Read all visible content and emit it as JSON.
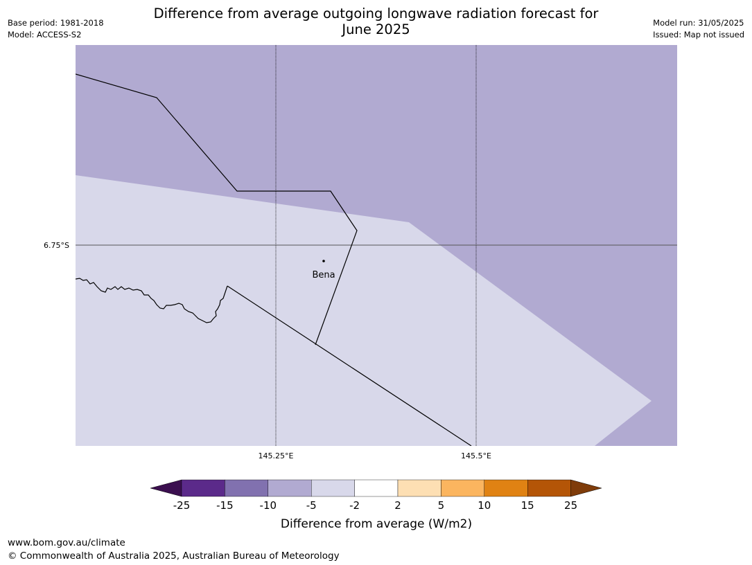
{
  "header": {
    "base_period": "Base period: 1981-2018",
    "model": "Model: ACCESS-S2",
    "title_line1": "Difference from average outgoing longwave radiation forecast for",
    "title_line2": "June 2025",
    "model_run": "Model run: 31/05/2025",
    "issued": "Issued: Map not issued"
  },
  "map": {
    "latitude_labels": [
      "6.75°S"
    ],
    "longitude_labels": [
      "145.25°E",
      "145.5°E"
    ],
    "place": "Bena",
    "fill_colors": {
      "minus_10_to_minus_5": "#b1aad1",
      "minus_5_to_minus_2": "#d8d8ea"
    },
    "border_color": "#000000"
  },
  "legend": {
    "tick_labels": [
      "-25",
      "-15",
      "-10",
      "-5",
      "-2",
      "2",
      "5",
      "10",
      "15",
      "25"
    ],
    "colors": [
      "#3b0f4f",
      "#5b2a8a",
      "#8171af",
      "#b1aad1",
      "#d8d8ea",
      "#ffffff",
      "#fddfb3",
      "#fbb55f",
      "#e08213",
      "#b45507",
      "#7f3c0a"
    ],
    "label": "Difference from average (W/m2)"
  },
  "footer": {
    "url": "www.bom.gov.au/climate",
    "copyright": "© Commonwealth of Australia 2025, Australian Bureau of Meteorology"
  }
}
